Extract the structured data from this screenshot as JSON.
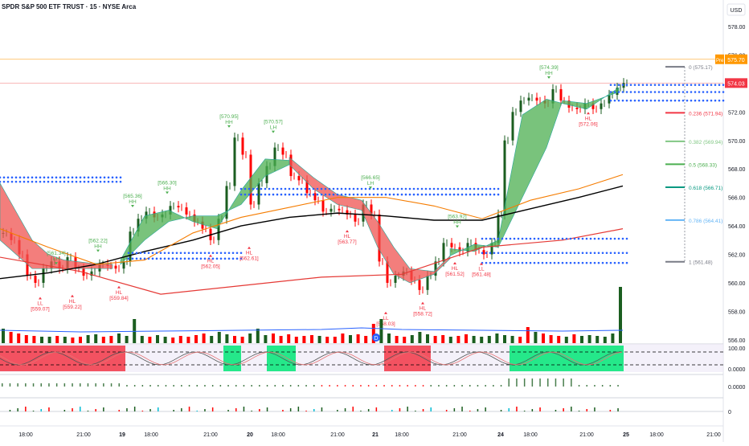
{
  "header": {
    "title": "SPDR S&P 500 ETF TRUST · 15 · NYSE Arca",
    "currency": "USD"
  },
  "colors": {
    "up": "#1b5e20",
    "down": "#ff0000",
    "ma_black": "#000000",
    "ma_orange": "#f57c00",
    "ma_red": "#e53935",
    "cloud_green": "#4caf50",
    "cloud_red": "#ef5350",
    "dots_blue": "#2962ff",
    "price_tag_red": "#f23645",
    "pre_tag_orange": "#ff9800"
  },
  "price_axis": {
    "ticks": [
      "578.00",
      "576.00",
      "574.00",
      "572.00",
      "570.00",
      "568.00",
      "566.00",
      "564.00",
      "562.00",
      "560.00",
      "558.00",
      "556.00"
    ],
    "current_price": "574.03",
    "pre_label": "Pre",
    "pre_price": "575.70"
  },
  "time_axis": {
    "labels": [
      "18:00",
      "21:00",
      "19",
      "18:00",
      "21:00",
      "20",
      "18:00",
      "21:00",
      "21",
      "18:00",
      "21:00",
      "24",
      "18:00",
      "21:00",
      "25",
      "18:00",
      "21:00"
    ]
  },
  "fib_levels": [
    {
      "label": "0 (575.17)",
      "color": "#787b86"
    },
    {
      "label": "0.236 (571.94)",
      "color": "#f23645"
    },
    {
      "label": "0.382 (569.94)",
      "color": "#81c784"
    },
    {
      "label": "0.5 (568.33)",
      "color": "#4caf50"
    },
    {
      "label": "0.618 (566.71)",
      "color": "#089981"
    },
    {
      "label": "0.786 (564.41)",
      "color": "#64b5f6"
    },
    {
      "label": "1 (561.48)",
      "color": "#787b86"
    }
  ],
  "pivot_labels": [
    {
      "type": "HH",
      "value": "[574.39]",
      "color": "#4caf50"
    },
    {
      "type": "HH",
      "value": "[570.95]",
      "color": "#4caf50"
    },
    {
      "type": "LH",
      "value": "[570.57]",
      "color": "#4caf50"
    },
    {
      "type": "LH",
      "value": "[566.65]",
      "color": "#4caf50"
    },
    {
      "type": "HH",
      "value": "[566.30]",
      "color": "#4caf50"
    },
    {
      "type": "HH",
      "value": "[565.36]",
      "color": "#4caf50"
    },
    {
      "type": "HH",
      "value": "[563.92]",
      "color": "#4caf50"
    },
    {
      "type": "HH",
      "value": "[562.22]",
      "color": "#4caf50"
    },
    {
      "type": "LH",
      "value": "[561.34]",
      "color": "#4caf50"
    },
    {
      "type": "HL",
      "value": "[572.06]",
      "color": "#f23645"
    },
    {
      "type": "HL",
      "value": "[563.77]",
      "color": "#f23645"
    },
    {
      "type": "HL",
      "value": "[562.61]",
      "color": "#f23645"
    },
    {
      "type": "HL",
      "value": "[562.05]",
      "color": "#f23645"
    },
    {
      "type": "HL",
      "value": "[561.52]",
      "color": "#f23645"
    },
    {
      "type": "LL",
      "value": "[561.48]",
      "color": "#f23645"
    },
    {
      "type": "HL",
      "value": "[559.84]",
      "color": "#f23645"
    },
    {
      "type": "HL",
      "value": "[559.22]",
      "color": "#f23645"
    },
    {
      "type": "LL",
      "value": "[559.07]",
      "color": "#f23645"
    },
    {
      "type": "HL",
      "value": "[558.72]",
      "color": "#f23645"
    },
    {
      "type": "LL",
      "value": "[558.03]",
      "color": "#f23645"
    }
  ],
  "stoch_axis": {
    "ticks": [
      "100.00",
      "0.0000"
    ]
  },
  "macd_axis": {
    "ticks": [
      "0.0000"
    ]
  },
  "bottom_axis": {
    "ticks": [
      "0"
    ]
  },
  "events": {
    "dividend_marker": "D"
  }
}
